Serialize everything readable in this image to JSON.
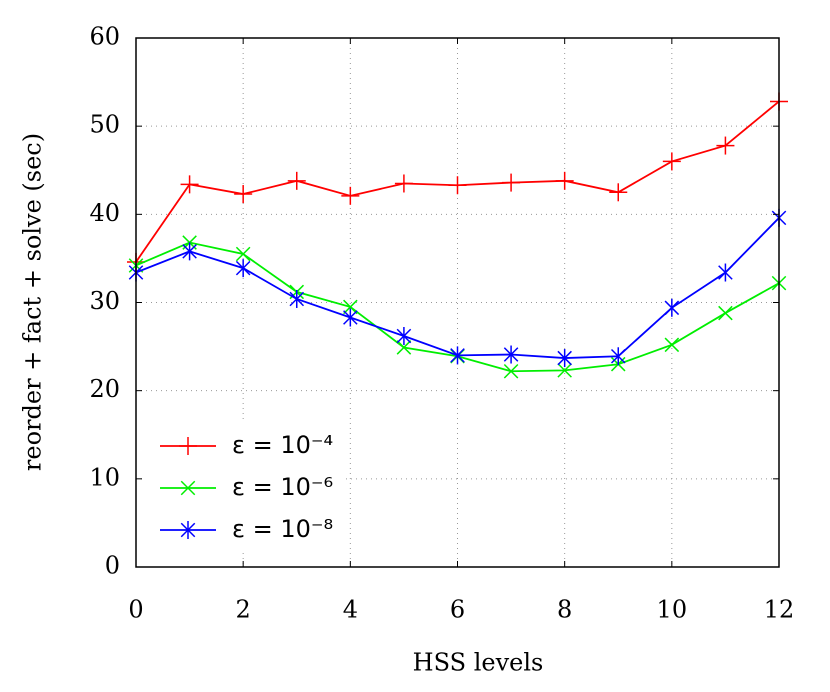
{
  "chart_data": {
    "type": "line",
    "x_label": "HSS levels",
    "y_label": "reorder + fact + solve (sec)",
    "x": [
      0,
      1,
      2,
      3,
      4,
      5,
      6,
      7,
      8,
      9,
      10,
      11,
      12
    ],
    "series": [
      {
        "name": "ε = 10⁻⁴",
        "color": "#ff0000",
        "marker": "plus",
        "values": [
          34.6,
          43.4,
          42.3,
          43.8,
          42.1,
          43.5,
          43.3,
          43.6,
          43.8,
          42.5,
          46.0,
          47.8,
          52.8
        ]
      },
      {
        "name": "ε = 10⁻⁶",
        "color": "#00ee00",
        "marker": "cross",
        "values": [
          34.2,
          36.8,
          35.5,
          31.2,
          29.5,
          24.9,
          23.9,
          22.2,
          22.3,
          23.0,
          25.2,
          28.8,
          32.2
        ]
      },
      {
        "name": "ε = 10⁻⁸",
        "color": "#0000ff",
        "marker": "star",
        "values": [
          33.4,
          35.8,
          33.9,
          30.4,
          28.3,
          26.2,
          24.0,
          24.1,
          23.7,
          23.9,
          29.4,
          33.4,
          39.6
        ]
      }
    ],
    "xlim": [
      0,
      12
    ],
    "xticks": [
      0,
      2,
      4,
      6,
      8,
      10,
      12
    ],
    "ylim": [
      0,
      60
    ],
    "yticks": [
      0,
      10,
      20,
      30,
      40,
      50,
      60
    ],
    "grid": true,
    "legend_position": "lower left"
  }
}
